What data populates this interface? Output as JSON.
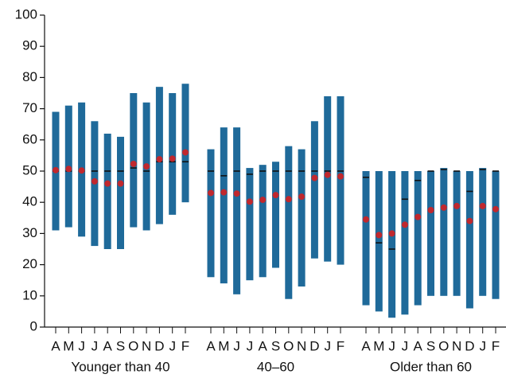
{
  "chart_data": {
    "type": "range",
    "ylim": [
      0,
      100
    ],
    "yticks": [
      0,
      10,
      20,
      30,
      40,
      50,
      60,
      70,
      80,
      90,
      100
    ],
    "bar_color": "#1f6a9a",
    "dot_color": "#c0282e",
    "dash_color": "#111111",
    "groups": [
      {
        "label": "Younger than 40",
        "categories": [
          "A",
          "M",
          "J",
          "J",
          "A",
          "S",
          "O",
          "N",
          "D",
          "J",
          "F"
        ],
        "low": [
          31,
          32,
          29,
          26,
          25,
          25,
          32,
          31,
          33,
          36,
          40
        ],
        "high": [
          69,
          71,
          72,
          66,
          62,
          61,
          75,
          72,
          77,
          75,
          78
        ],
        "dot": [
          50.3,
          50.7,
          50.2,
          46.7,
          46,
          46,
          52.3,
          51.5,
          53.8,
          54,
          56
        ],
        "dash": [
          50,
          50,
          50,
          50,
          50,
          50,
          51,
          50,
          53,
          53,
          53
        ]
      },
      {
        "label": "40–60",
        "categories": [
          "A",
          "M",
          "J",
          "J",
          "A",
          "S",
          "O",
          "N",
          "D",
          "J",
          "F"
        ],
        "low": [
          16,
          14,
          10.5,
          15,
          16,
          19,
          9,
          13,
          22,
          21,
          20
        ],
        "high": [
          57,
          64,
          64,
          51,
          52,
          53,
          58,
          57,
          66,
          74,
          74
        ],
        "dot": [
          43,
          43.2,
          42.8,
          40.2,
          40.8,
          42.3,
          41,
          41.8,
          47.8,
          48.8,
          48.3
        ],
        "dash": [
          50,
          48.5,
          50,
          49,
          50,
          50,
          50,
          50,
          50,
          50,
          50
        ]
      },
      {
        "label": "Older than 60",
        "categories": [
          "A",
          "M",
          "J",
          "J",
          "A",
          "S",
          "O",
          "N",
          "D",
          "J",
          "F"
        ],
        "low": [
          7,
          5,
          3,
          4,
          7,
          10,
          10,
          10,
          6,
          10,
          9
        ],
        "high": [
          50,
          50,
          50,
          50,
          50,
          50,
          51,
          50,
          50,
          51,
          50
        ],
        "dot": [
          34.5,
          29.5,
          30,
          32.8,
          35.3,
          37.5,
          38.3,
          38.8,
          34,
          38.8,
          37.8
        ],
        "dash": [
          48,
          27,
          25,
          41,
          47,
          50,
          50.5,
          50,
          43.5,
          50.5,
          50
        ]
      }
    ]
  }
}
